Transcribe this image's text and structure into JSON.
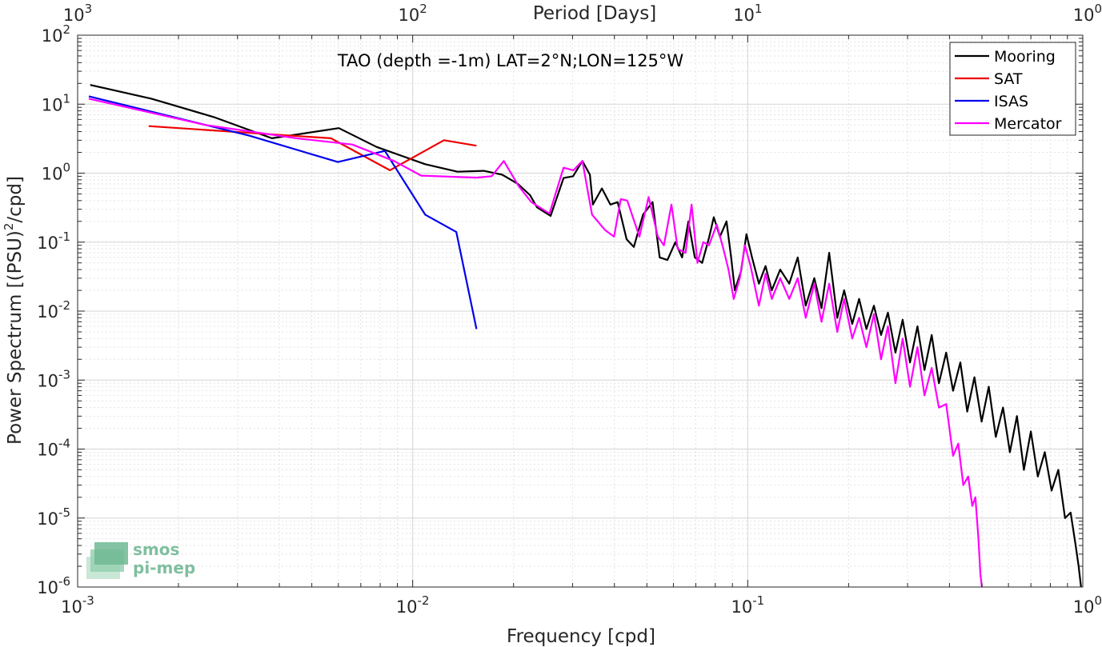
{
  "chart_data": {
    "type": "line",
    "title": "TAO (depth =-1m) LAT=2°N;LON=125°W",
    "xlabel": "Frequency [cpd]",
    "ylabel": "Power Spectrum [(PSU)²/cpd]",
    "ylabel_parts": {
      "pre": "Power Spectrum [(PSU)",
      "sup": "2",
      "post": "/cpd]"
    },
    "top_xlabel": "Period [Days]",
    "x_scale": "log",
    "y_scale": "log",
    "xlim": [
      0.001,
      1
    ],
    "ylim": [
      1e-06,
      100
    ],
    "grid": true,
    "legend_position": "top-right",
    "x_ticks": [
      {
        "base": "10",
        "exp": "-3",
        "value": 0.001
      },
      {
        "base": "10",
        "exp": "-2",
        "value": 0.01
      },
      {
        "base": "10",
        "exp": "-1",
        "value": 0.1
      },
      {
        "base": "10",
        "exp": "0",
        "value": 1
      }
    ],
    "top_x_ticks": [
      {
        "base": "10",
        "exp": "3",
        "value": 1000
      },
      {
        "base": "10",
        "exp": "2",
        "value": 100
      },
      {
        "base": "10",
        "exp": "1",
        "value": 10
      },
      {
        "base": "10",
        "exp": "0",
        "value": 1
      }
    ],
    "y_ticks": [
      {
        "base": "10",
        "exp": "-6",
        "value": 1e-06
      },
      {
        "base": "10",
        "exp": "-5",
        "value": 1e-05
      },
      {
        "base": "10",
        "exp": "-4",
        "value": 0.0001
      },
      {
        "base": "10",
        "exp": "-3",
        "value": 0.001
      },
      {
        "base": "10",
        "exp": "-2",
        "value": 0.01
      },
      {
        "base": "10",
        "exp": "-1",
        "value": 0.1
      },
      {
        "base": "10",
        "exp": "0",
        "value": 1
      },
      {
        "base": "10",
        "exp": "1",
        "value": 10
      },
      {
        "base": "10",
        "exp": "2",
        "value": 100
      }
    ],
    "series": [
      {
        "name": "Mooring",
        "color": "#000000",
        "points": [
          [
            0.00109,
            19
          ],
          [
            0.00166,
            12
          ],
          [
            0.00255,
            6.5
          ],
          [
            0.0038,
            3.2
          ],
          [
            0.00602,
            4.5
          ],
          [
            0.0078,
            2.4
          ],
          [
            0.0109,
            1.35
          ],
          [
            0.0136,
            1.05
          ],
          [
            0.0163,
            1.08
          ],
          [
            0.0185,
            0.95
          ],
          [
            0.0206,
            0.7
          ],
          [
            0.0224,
            0.48
          ],
          [
            0.0235,
            0.32
          ],
          [
            0.0258,
            0.24
          ],
          [
            0.0282,
            0.85
          ],
          [
            0.0301,
            0.9
          ],
          [
            0.0321,
            1.5
          ],
          [
            0.0338,
            0.95
          ],
          [
            0.0345,
            0.35
          ],
          [
            0.0367,
            0.6
          ],
          [
            0.0389,
            0.35
          ],
          [
            0.0409,
            0.38
          ],
          [
            0.0435,
            0.11
          ],
          [
            0.0457,
            0.085
          ],
          [
            0.0487,
            0.25
          ],
          [
            0.052,
            0.38
          ],
          [
            0.0546,
            0.06
          ],
          [
            0.0576,
            0.055
          ],
          [
            0.0608,
            0.1
          ],
          [
            0.0637,
            0.06
          ],
          [
            0.0665,
            0.2
          ],
          [
            0.0695,
            0.06
          ],
          [
            0.0731,
            0.05
          ],
          [
            0.0768,
            0.12
          ],
          [
            0.0792,
            0.23
          ],
          [
            0.0826,
            0.12
          ],
          [
            0.0864,
            0.2
          ],
          [
            0.0892,
            0.06
          ],
          [
            0.0915,
            0.02
          ],
          [
            0.0955,
            0.038
          ],
          [
            0.0991,
            0.13
          ],
          [
            0.103,
            0.06
          ],
          [
            0.108,
            0.025
          ],
          [
            0.113,
            0.045
          ],
          [
            0.118,
            0.02
          ],
          [
            0.125,
            0.04
          ],
          [
            0.133,
            0.025
          ],
          [
            0.141,
            0.06
          ],
          [
            0.149,
            0.012
          ],
          [
            0.158,
            0.03
          ],
          [
            0.166,
            0.011
          ],
          [
            0.175,
            0.07
          ],
          [
            0.185,
            0.008
          ],
          [
            0.194,
            0.02
          ],
          [
            0.205,
            0.0065
          ],
          [
            0.215,
            0.015
          ],
          [
            0.226,
            0.0055
          ],
          [
            0.238,
            0.012
          ],
          [
            0.25,
            0.0045
          ],
          [
            0.262,
            0.0095
          ],
          [
            0.276,
            0.0025
          ],
          [
            0.29,
            0.0075
          ],
          [
            0.305,
            0.0018
          ],
          [
            0.321,
            0.006
          ],
          [
            0.337,
            0.0014
          ],
          [
            0.354,
            0.0045
          ],
          [
            0.372,
            0.0009
          ],
          [
            0.391,
            0.0025
          ],
          [
            0.41,
            0.0007
          ],
          [
            0.431,
            0.0018
          ],
          [
            0.452,
            0.00035
          ],
          [
            0.475,
            0.0011
          ],
          [
            0.499,
            0.00025
          ],
          [
            0.524,
            0.0008
          ],
          [
            0.55,
            0.00015
          ],
          [
            0.578,
            0.0004
          ],
          [
            0.606,
            9e-05
          ],
          [
            0.636,
            0.0003
          ],
          [
            0.667,
            5e-05
          ],
          [
            0.7,
            0.00018
          ],
          [
            0.734,
            4e-05
          ],
          [
            0.77,
            9e-05
          ],
          [
            0.807,
            2.5e-05
          ],
          [
            0.845,
            5e-05
          ],
          [
            0.885,
            1e-05
          ],
          [
            0.92,
            1.2e-05
          ],
          [
            0.952,
            4e-06
          ],
          [
            0.972,
            2e-06
          ],
          [
            0.988,
            1e-06
          ]
        ]
      },
      {
        "name": "SAT",
        "color": "#ee0000",
        "points": [
          [
            0.00163,
            4.8
          ],
          [
            0.0057,
            3.2
          ],
          [
            0.00855,
            1.1
          ],
          [
            0.0124,
            3.0
          ],
          [
            0.0155,
            2.5
          ]
        ]
      },
      {
        "name": "ISAS",
        "color": "#0000ee",
        "points": [
          [
            0.00108,
            13
          ],
          [
            0.00325,
            3.5
          ],
          [
            0.00598,
            1.45
          ],
          [
            0.00826,
            2.1
          ],
          [
            0.0109,
            0.25
          ],
          [
            0.0135,
            0.14
          ],
          [
            0.0155,
            0.0055
          ]
        ]
      },
      {
        "name": "Mercator",
        "color": "#ff00ff",
        "points": [
          [
            0.00108,
            12
          ],
          [
            0.0024,
            5
          ],
          [
            0.0045,
            3.2
          ],
          [
            0.0066,
            2.6
          ],
          [
            0.0088,
            1.5
          ],
          [
            0.0106,
            0.92
          ],
          [
            0.0155,
            0.86
          ],
          [
            0.0172,
            0.9
          ],
          [
            0.0187,
            1.5
          ],
          [
            0.0207,
            0.65
          ],
          [
            0.0226,
            0.38
          ],
          [
            0.0256,
            0.26
          ],
          [
            0.0282,
            1.2
          ],
          [
            0.0302,
            1.1
          ],
          [
            0.0321,
            1.5
          ],
          [
            0.0343,
            0.25
          ],
          [
            0.0375,
            0.15
          ],
          [
            0.0399,
            0.12
          ],
          [
            0.0418,
            0.42
          ],
          [
            0.0437,
            0.4
          ],
          [
            0.0475,
            0.12
          ],
          [
            0.0506,
            0.45
          ],
          [
            0.0539,
            0.12
          ],
          [
            0.0562,
            0.09
          ],
          [
            0.0592,
            0.35
          ],
          [
            0.0618,
            0.08
          ],
          [
            0.0652,
            0.07
          ],
          [
            0.068,
            0.35
          ],
          [
            0.0708,
            0.05
          ],
          [
            0.0737,
            0.1
          ],
          [
            0.0766,
            0.09
          ],
          [
            0.0808,
            0.18
          ],
          [
            0.0846,
            0.08
          ],
          [
            0.0876,
            0.04
          ],
          [
            0.0908,
            0.015
          ],
          [
            0.0947,
            0.03
          ],
          [
            0.0981,
            0.09
          ],
          [
            0.102,
            0.045
          ],
          [
            0.108,
            0.012
          ],
          [
            0.113,
            0.035
          ],
          [
            0.118,
            0.015
          ],
          [
            0.125,
            0.03
          ],
          [
            0.133,
            0.015
          ],
          [
            0.141,
            0.03
          ],
          [
            0.149,
            0.008
          ],
          [
            0.158,
            0.025
          ],
          [
            0.166,
            0.007
          ],
          [
            0.175,
            0.025
          ],
          [
            0.185,
            0.005
          ],
          [
            0.194,
            0.015
          ],
          [
            0.205,
            0.004
          ],
          [
            0.215,
            0.008
          ],
          [
            0.226,
            0.003
          ],
          [
            0.238,
            0.009
          ],
          [
            0.25,
            0.002
          ],
          [
            0.262,
            0.006
          ],
          [
            0.276,
            0.0009
          ],
          [
            0.29,
            0.004
          ],
          [
            0.305,
            0.0008
          ],
          [
            0.321,
            0.003
          ],
          [
            0.337,
            0.0006
          ],
          [
            0.354,
            0.0015
          ],
          [
            0.372,
            0.0004
          ],
          [
            0.391,
            0.00045
          ],
          [
            0.41,
            8e-05
          ],
          [
            0.425,
            0.00012
          ],
          [
            0.44,
            3e-05
          ],
          [
            0.455,
            4e-05
          ],
          [
            0.468,
            1.5e-05
          ],
          [
            0.478,
            2e-05
          ],
          [
            0.488,
            5e-06
          ],
          [
            0.495,
            1.5e-06
          ],
          [
            0.5,
            1e-06
          ]
        ]
      }
    ]
  },
  "logo": {
    "line1": "smos",
    "line2": "pi-mep"
  }
}
